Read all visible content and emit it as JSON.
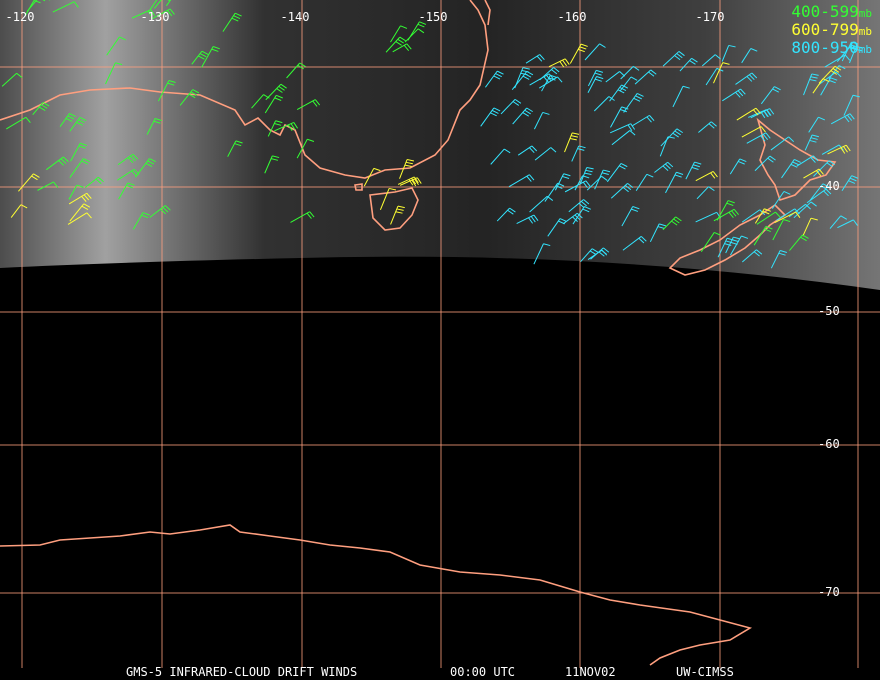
{
  "map": {
    "lon_labels": [
      "-120",
      "-130",
      "-140",
      "-150",
      "-160",
      "-170"
    ],
    "lat_labels": [
      "-40",
      "-50",
      "-60",
      "-70"
    ],
    "legend": [
      {
        "label": "400-599",
        "unit": "mb",
        "color": "#33ff33"
      },
      {
        "label": "600-799",
        "unit": "mb",
        "color": "#ffff33"
      },
      {
        "label": "800-950",
        "unit": "mb",
        "color": "#33e5ff"
      }
    ],
    "footer": [
      "GMS-5 INFRARED-CLOUD DRIFT WINDS",
      "00:00 UTC",
      "11NOV02",
      "UW-CIMSS"
    ]
  }
}
